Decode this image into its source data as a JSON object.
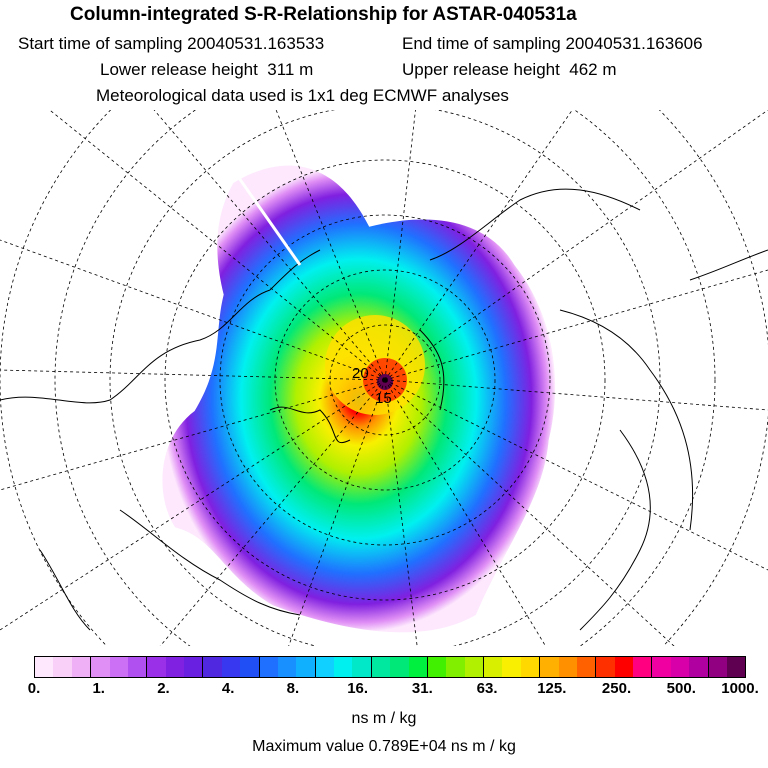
{
  "header": {
    "title": "Column-integrated S-R-Relationship for ASTAR-040531a",
    "start_label": "Start time of sampling 20040531.163533",
    "end_label": "End time of sampling 20040531.163606",
    "lower_label": "Lower release height  311 m",
    "upper_label": "Upper release height  462 m",
    "met_label": "Meteorological data used is 1x1 deg ECMWF analyses"
  },
  "map": {
    "projection": "north polar stereographic",
    "plume_center_label": "20",
    "plume_center_label2": "15"
  },
  "colorbar": {
    "tick_labels": [
      "0.",
      "1.",
      "2.",
      "4.",
      "8.",
      "16.",
      "31.",
      "63.",
      "125.",
      "250.",
      "500.",
      "1000."
    ],
    "colors": [
      "#fde8fd",
      "#f8d0f8",
      "#f0b0f5",
      "#e090f5",
      "#cc70f5",
      "#b050f0",
      "#9a30e8",
      "#8020e0",
      "#6a20e0",
      "#5028e0",
      "#3838f0",
      "#2050f5",
      "#2070ff",
      "#1890ff",
      "#10b0ff",
      "#10d0ff",
      "#00f0f0",
      "#00e8c8",
      "#00e8a0",
      "#00e878",
      "#00f040",
      "#40f000",
      "#80f000",
      "#b0f000",
      "#d8f000",
      "#f8f000",
      "#ffd800",
      "#ffb000",
      "#ff9000",
      "#ff6000",
      "#ff3000",
      "#ff0000",
      "#ff0080",
      "#f000a0",
      "#d800a8",
      "#b000a0",
      "#900080",
      "#600050"
    ],
    "units": "ns m / kg",
    "max_label": "Maximum value  0.789E+04 ns m / kg"
  }
}
